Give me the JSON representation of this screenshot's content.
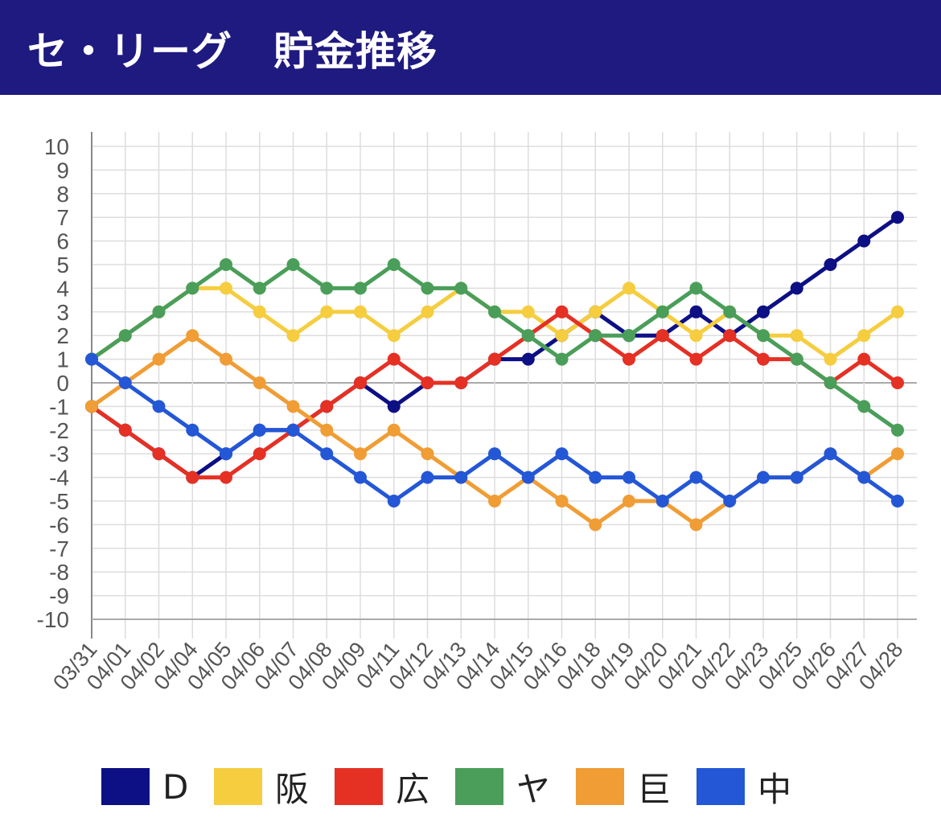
{
  "header": {
    "title": "セ・リーグ　貯金推移",
    "bg_color": "#1f1a80"
  },
  "chart_data": {
    "type": "line",
    "title": "セ・リーグ　貯金推移",
    "xlabel": "",
    "ylabel": "",
    "ylim": [
      -10,
      10
    ],
    "yticks": [
      "10",
      "9",
      "8",
      "7",
      "6",
      "5",
      "4",
      "3",
      "2",
      "1",
      "0",
      "-1",
      "-2",
      "-3",
      "-4",
      "-5",
      "-6",
      "-7",
      "-8",
      "-9",
      "-10"
    ],
    "categories": [
      "03/31",
      "04/01",
      "04/02",
      "04/04",
      "04/05",
      "04/06",
      "04/07",
      "04/08",
      "04/09",
      "04/11",
      "04/12",
      "04/13",
      "04/14",
      "04/15",
      "04/16",
      "04/18",
      "04/19",
      "04/20",
      "04/21",
      "04/22",
      "04/23",
      "04/25",
      "04/26",
      "04/27",
      "04/28"
    ],
    "grid": true,
    "legend_position": "bottom",
    "series": [
      {
        "name": "D",
        "color": "#0d0f85",
        "values": [
          -1,
          -2,
          -3,
          -4,
          -3,
          -2,
          -2,
          -1,
          0,
          -1,
          0,
          0,
          1,
          1,
          2,
          3,
          2,
          2,
          3,
          2,
          3,
          4,
          5,
          6,
          7
        ]
      },
      {
        "name": "阪",
        "color": "#f5cd3f",
        "values": [
          1,
          2,
          3,
          4,
          4,
          3,
          2,
          3,
          3,
          2,
          3,
          4,
          3,
          3,
          2,
          3,
          4,
          3,
          2,
          3,
          2,
          2,
          1,
          2,
          3
        ]
      },
      {
        "name": "広",
        "color": "#e53024",
        "values": [
          -1,
          -2,
          -3,
          -4,
          -4,
          -3,
          -2,
          -1,
          0,
          1,
          0,
          0,
          1,
          2,
          3,
          2,
          1,
          2,
          1,
          2,
          1,
          1,
          0,
          1,
          0
        ]
      },
      {
        "name": "ヤ",
        "color": "#4a9e59",
        "values": [
          1,
          2,
          3,
          4,
          5,
          4,
          5,
          4,
          4,
          5,
          4,
          4,
          3,
          2,
          1,
          2,
          2,
          3,
          4,
          3,
          2,
          1,
          0,
          -1,
          -2
        ]
      },
      {
        "name": "巨",
        "color": "#f09d35",
        "values": [
          -1,
          0,
          1,
          2,
          1,
          0,
          -1,
          -2,
          -3,
          -2,
          -3,
          -4,
          -5,
          -4,
          -5,
          -6,
          -5,
          -5,
          -6,
          -5,
          -4,
          -4,
          -3,
          -4,
          -3
        ]
      },
      {
        "name": "中",
        "color": "#2457d6",
        "values": [
          1,
          0,
          -1,
          -2,
          -3,
          -2,
          -2,
          -3,
          -4,
          -5,
          -4,
          -4,
          -3,
          -4,
          -3,
          -4,
          -4,
          -5,
          -4,
          -5,
          -4,
          -4,
          -3,
          -4,
          -5
        ]
      }
    ]
  }
}
